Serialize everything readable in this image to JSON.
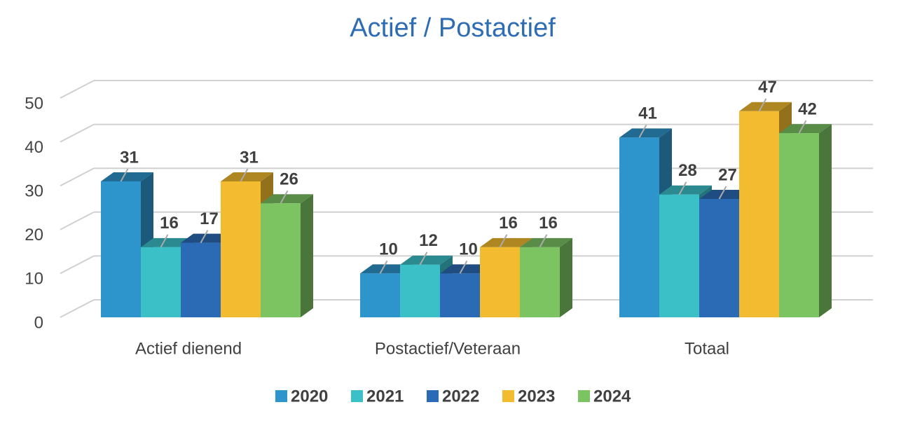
{
  "chart_data": {
    "type": "bar3d",
    "title": "Actief / Postactief",
    "categories": [
      "Actief dienend",
      "Postactief/Veteraan",
      "Totaal"
    ],
    "series": [
      {
        "name": "2020",
        "color": "#2e95cc",
        "values": [
          31,
          10,
          41
        ]
      },
      {
        "name": "2021",
        "color": "#3bc0c8",
        "values": [
          16,
          12,
          28
        ]
      },
      {
        "name": "2022",
        "color": "#2b6bb5",
        "values": [
          17,
          10,
          27
        ]
      },
      {
        "name": "2023",
        "color": "#f3bb2f",
        "values": [
          31,
          16,
          47
        ]
      },
      {
        "name": "2024",
        "color": "#7cc462",
        "values": [
          26,
          16,
          42
        ]
      }
    ],
    "ylim": [
      0,
      50
    ],
    "yticks": [
      0,
      10,
      20,
      30,
      40,
      50
    ],
    "grid": true
  }
}
